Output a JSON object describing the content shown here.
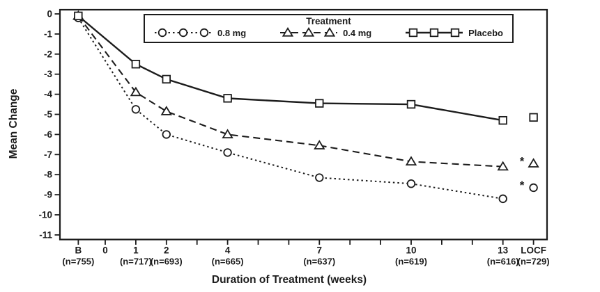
{
  "figure": {
    "background": "#ffffff",
    "ink_color": "#1c1c1c"
  },
  "chart_data": {
    "type": "line",
    "title": "",
    "xlabel": "Duration of Treatment (weeks)",
    "ylabel": "Mean Change",
    "legend": {
      "title": "Treatment",
      "position": "top-center-inside"
    },
    "grid": false,
    "ylim": [
      -11.3,
      0.2
    ],
    "y_axis": {
      "ticks": [
        0,
        -1,
        -2,
        -3,
        -4,
        -5,
        -6,
        -7,
        -8,
        -9,
        -10,
        -11
      ]
    },
    "x_axis": {
      "categories": [
        {
          "label": "B",
          "n_label": "(n=755)",
          "week": -0.88
        },
        {
          "label": "0",
          "n_label": "",
          "week": 0
        },
        {
          "label": "1",
          "n_label": "(n=717)",
          "week": 1
        },
        {
          "label": "2",
          "n_label": "(n=693)",
          "week": 2
        },
        {
          "label": "4",
          "n_label": "(n=665)",
          "week": 4
        },
        {
          "label": "7",
          "n_label": "(n=637)",
          "week": 7
        },
        {
          "label": "10",
          "n_label": "(n=619)",
          "week": 10
        },
        {
          "label": "13",
          "n_label": "(n=616)",
          "week": 13
        },
        {
          "label": "LOCF",
          "n_label": "(n=729)",
          "week": 14
        }
      ],
      "minor_tick_weeks": [
        3,
        5,
        6,
        8,
        9,
        11,
        12
      ]
    },
    "point_weeks": [
      -0.88,
      1,
      2,
      4,
      7,
      10,
      13
    ],
    "locf_week": 14,
    "series": [
      {
        "name": "0.8 mg",
        "marker": "circle",
        "line_style": "dotted",
        "values": [
          -0.2,
          -4.75,
          -6.0,
          -6.9,
          -8.15,
          -8.45,
          -9.2
        ],
        "locf": {
          "value": -8.65,
          "flag": "*"
        }
      },
      {
        "name": "0.4 mg",
        "marker": "triangle",
        "line_style": "dashed",
        "values": [
          -0.1,
          -3.9,
          -4.85,
          -6.0,
          -6.55,
          -7.35,
          -7.6
        ],
        "locf": {
          "value": -7.45,
          "flag": "*"
        }
      },
      {
        "name": "Placebo",
        "marker": "square",
        "line_style": "solid",
        "values": [
          -0.1,
          -2.5,
          -3.25,
          -4.2,
          -4.45,
          -4.5,
          -5.3
        ],
        "locf": {
          "value": -5.15,
          "flag": ""
        }
      }
    ]
  }
}
